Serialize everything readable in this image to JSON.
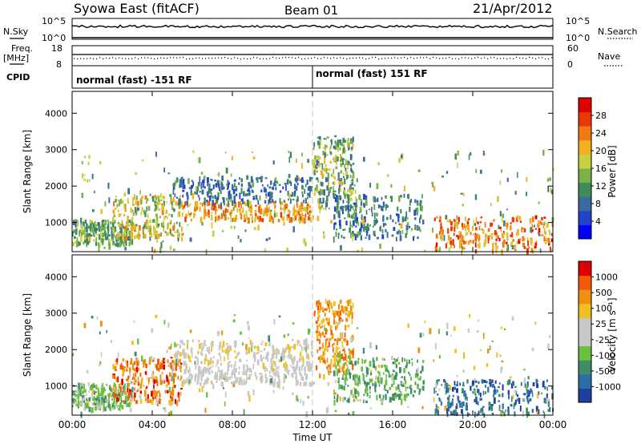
{
  "header": {
    "title": "Syowa East (fitACF)",
    "beam": "Beam 01",
    "date": "21/Apr/2012"
  },
  "top_panels": {
    "nsky_label": "N.Sky",
    "nsky_ticks": [
      "10^5",
      "10^0"
    ],
    "nsearch_label": "N.Search",
    "nsearch_ticks": [
      "10^5",
      "10^0"
    ],
    "freq_label": "Freq.",
    "freq_unit": "[MHz]",
    "freq_ticks": [
      "18",
      "8"
    ],
    "nave_label": "Nave",
    "nave_ticks": [
      "60",
      "0"
    ],
    "cpid_label": "CPID",
    "cpid_segments": [
      {
        "label": "normal (fast) -151 RF",
        "start_hour": 0,
        "end_hour": 12
      },
      {
        "label": "normal (fast) 151 RF",
        "start_hour": 12,
        "end_hour": 24
      }
    ]
  },
  "chart_data": [
    {
      "type": "heatmap",
      "name": "power-panel",
      "ylabel": "Slant Range [km]",
      "xlabel": "",
      "xlim": [
        0,
        24
      ],
      "ylim": [
        200,
        4600
      ],
      "yticks": [
        "4000",
        "3000",
        "2000",
        "1000"
      ],
      "xticks": [
        "00:00",
        "04:00",
        "08:00",
        "12:00",
        "16:00",
        "20:00",
        "00:00"
      ],
      "colorbar": {
        "label": "Power [dB]",
        "ticks": [
          "28",
          "24",
          "20",
          "16",
          "12",
          "8",
          "4"
        ],
        "range": [
          0,
          30
        ],
        "colors": [
          "#0000ff",
          "#2244cc",
          "#3a6aa0",
          "#3d8c5a",
          "#7ab24a",
          "#c8d040",
          "#f2b020",
          "#f07a10",
          "#e83a08",
          "#e00000"
        ]
      }
    },
    {
      "type": "heatmap",
      "name": "velocity-panel",
      "ylabel": "Slant Range [km]",
      "xlabel": "Time UT",
      "xlim": [
        0,
        24
      ],
      "ylim": [
        200,
        4600
      ],
      "yticks": [
        "4000",
        "3000",
        "2000",
        "1000"
      ],
      "xticks": [
        "00:00",
        "04:00",
        "08:00",
        "12:00",
        "16:00",
        "20:00",
        "00:00"
      ],
      "colorbar": {
        "label": "Velocity [m s⁻¹]",
        "ticks": [
          "1000",
          "500",
          "100",
          "25",
          "-25",
          "-100",
          "-500",
          "-1000"
        ],
        "colors": [
          "#2040a0",
          "#2e6ea6",
          "#3e8c6a",
          "#6cc040",
          "#c8c8c8",
          "#c8c8c8",
          "#f0c020",
          "#f09010",
          "#f05a08",
          "#e00000"
        ]
      }
    }
  ]
}
